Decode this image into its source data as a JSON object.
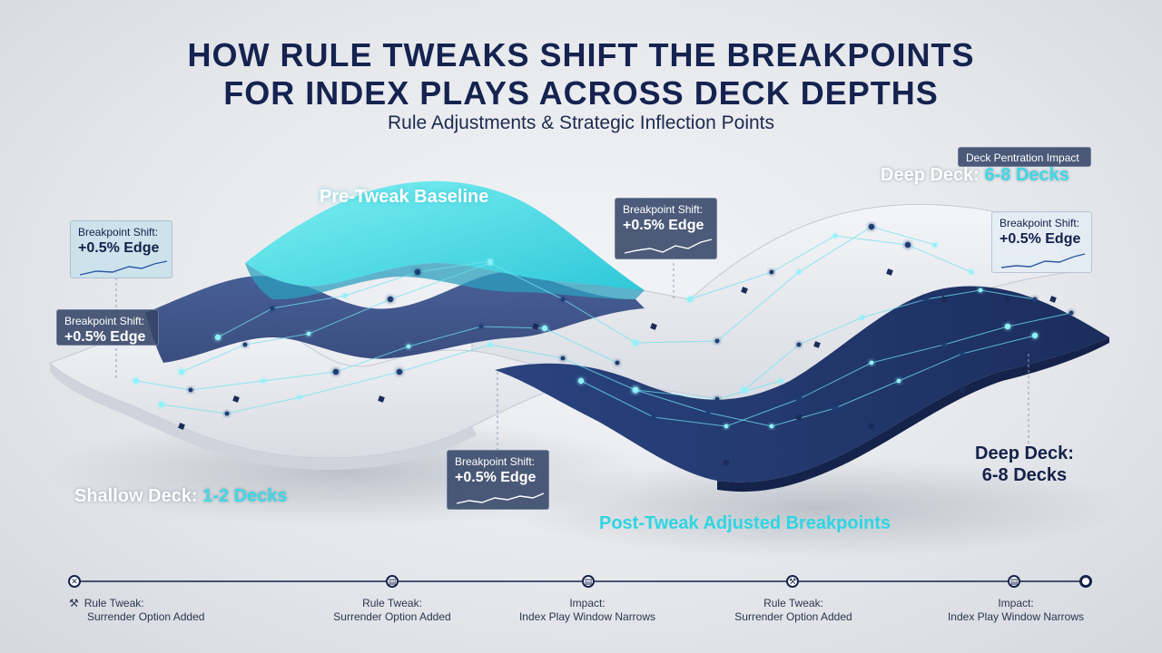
{
  "title": {
    "line1": "HOW RULE TWEAKS SHIFT THE BREAKPOINTS",
    "line2": "FOR INDEX PLAYS ACROSS DECK DEPTHS"
  },
  "subtitle": "Rule Adjustments & Strategic Inflection Points",
  "surfaces": {
    "pre_tweak": "Pre-Tweak Baseline",
    "post_tweak": "Post-Tweak Adjusted Breakpoints"
  },
  "deck_labels": {
    "shallow_prefix": "Shallow Deck: ",
    "shallow_value": "1-2 Decks",
    "deep_top_prefix": "Deep Deck: ",
    "deep_top_value": "6-8 Decks",
    "deep_right_line1": "Deep Deck:",
    "deep_right_line2": "6-8 Decks"
  },
  "callouts": [
    {
      "label": "Breakpoint Shift:",
      "value": "+0.5% Edge",
      "style": "light"
    },
    {
      "label": "Breakpoint Shift:",
      "value": "+0.5% Edge",
      "style": "dark"
    },
    {
      "label": "Breakpoint Shift:",
      "value": "+0.5% Edge",
      "style": "dark"
    },
    {
      "label": "Breakpoint Shift:",
      "value": "+0.5% Edge",
      "style": "dark"
    },
    {
      "label": "Breakpoint Shift:",
      "value": "+0.5% Edge",
      "style": "light"
    }
  ],
  "penetration_label": "Deck Pentration Impact",
  "timeline": [
    {
      "title": "Rule Tweak:",
      "desc": "Surrender Option Added",
      "icon": "hammer-icon"
    },
    {
      "title": "Rule Tweak:",
      "desc": "Surrender Option Added",
      "icon": "document-icon"
    },
    {
      "title": "Impact:",
      "desc": "Index Play Window Narrows",
      "icon": "document-icon"
    },
    {
      "title": "Rule Tweak:",
      "desc": "Surrender Option Added",
      "icon": "hammer-icon"
    },
    {
      "title": "Impact:",
      "desc": "Index Play Window Narrows",
      "icon": "document-icon"
    }
  ],
  "colors": {
    "navy": "#14224a",
    "cyan": "#3ed9e6",
    "deep_surface": "#1f3468",
    "light_surface": "#e9eaee"
  }
}
